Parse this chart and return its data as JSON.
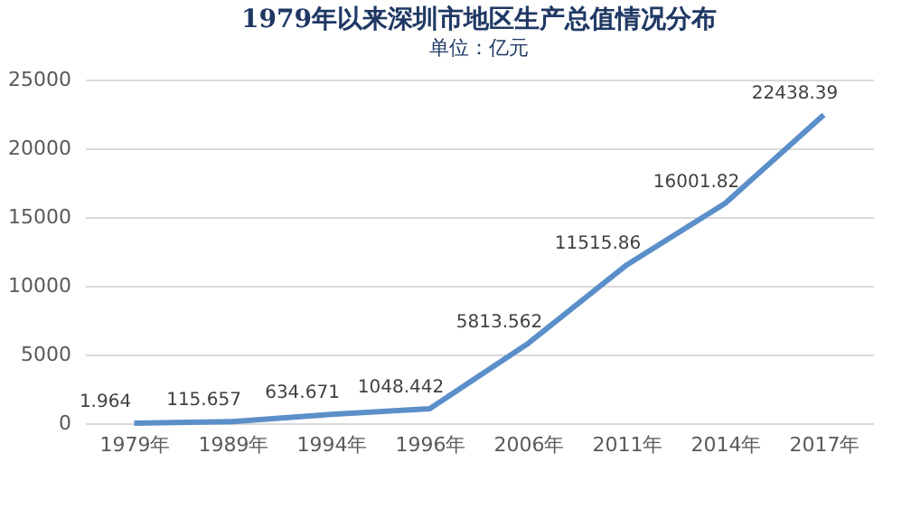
{
  "chart_data": {
    "type": "line",
    "title": "1979年以来深圳市地区生产总值情况分布",
    "subtitle": "单位：亿元",
    "categories": [
      "1979年",
      "1989年",
      "1994年",
      "1996年",
      "2006年",
      "2011年",
      "2014年",
      "2017年"
    ],
    "series": [
      {
        "color": "#5b8fc9",
        "values": [
          1.964,
          115.657,
          634.671,
          1048.442,
          5813.562,
          11515.86,
          16001.82,
          22438.39
        ]
      }
    ],
    "ylim": [
      0,
      25000
    ],
    "yticks": [
      0,
      5000,
      10000,
      15000,
      20000,
      25000
    ],
    "grid": "y",
    "data_labels": true,
    "marker": "none",
    "line_style": "solid"
  }
}
